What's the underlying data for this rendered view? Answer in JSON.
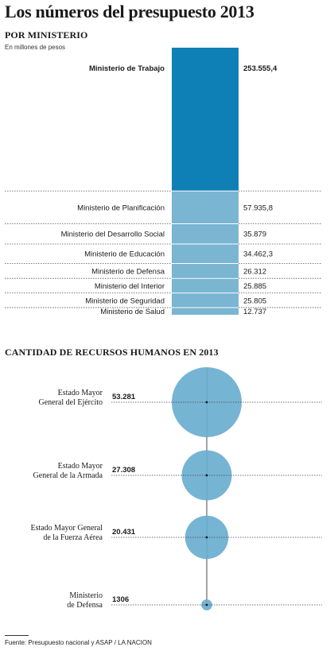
{
  "title": "Los números del presupuesto 2013",
  "source": "Fuente:  Presupuesto nacional y ASAP / LA NACION",
  "chart_data": [
    {
      "type": "bar",
      "title": "POR MINISTERIO",
      "subtitle": "En millones de pesos",
      "categories": [
        "Ministerio de Trabajo",
        "Ministerio de Planificación",
        "Ministerio del Desarrollo Social",
        "Ministerio de Educación",
        "Ministerio de Defensa",
        "Ministerio del Interior",
        "Ministerio de Seguridad",
        "Ministerio de Salud"
      ],
      "values": [
        253555.4,
        57935.8,
        35879,
        34462.3,
        26312,
        25885,
        25805,
        12737
      ],
      "value_labels": [
        "253.555,4",
        "57.935,8",
        "35.879",
        "34.462,3",
        "26.312",
        "25.885",
        "25.805",
        "12.737"
      ],
      "colors": {
        "highlight": "#0f80b5",
        "normal": "#7ab5d2"
      }
    },
    {
      "type": "scatter",
      "title": "CANTIDAD DE RECURSOS HUMANOS EN 2013",
      "categories": [
        "Estado Mayor General del Ejército",
        "Estado Mayor General de la Armada",
        "Estado Mayor General de la Fuerza Aérea",
        "Ministerio de Defensa"
      ],
      "label_lines": [
        [
          "Estado Mayor",
          "General del Ejército"
        ],
        [
          "Estado Mayor",
          "General de la Armada"
        ],
        [
          "Estado Mayor General",
          "de la Fuerza Aérea"
        ],
        [
          "Ministerio",
          "de Defensa"
        ]
      ],
      "values": [
        53281,
        27308,
        20431,
        1306
      ],
      "value_labels": [
        "53.281",
        "27.308",
        "20.431",
        "1306"
      ],
      "colors": {
        "bubble": "#6aaed0"
      }
    }
  ]
}
